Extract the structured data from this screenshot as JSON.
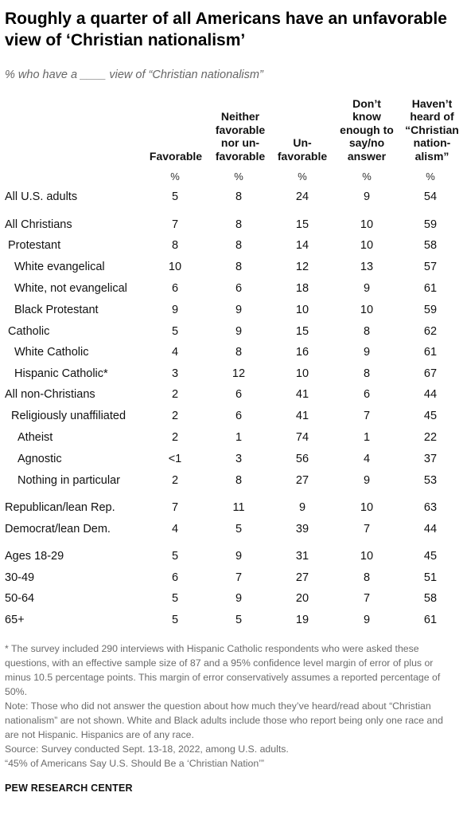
{
  "title": "Roughly a quarter of all Americans have an unfavorable view of ‘Christian nationalism’",
  "subtitle": "% who have a ____ view of “Christian nationalism”",
  "percent_symbol": "%",
  "columns": [
    "Favorable",
    "Neither\nfavorable\nnor un-\nfavorable",
    "Un-\nfavorable",
    "Don’t\nknow\nenough to\nsay/no\nanswer",
    "Haven’t\nheard of\n“Christian\nnation-\nalism”"
  ],
  "chart_data": {
    "type": "table",
    "title": "Roughly a quarter of all Americans have an unfavorable view of ‘Christian nationalism’",
    "columns": [
      "Favorable",
      "Neither favorable nor un-favorable",
      "Un-favorable",
      "Don’t know enough to say/no answer",
      "Haven’t heard of “Christian nation-alism”"
    ],
    "rows": [
      {
        "label": "All U.S. adults",
        "values": [
          "5",
          "8",
          "24",
          "9",
          "54"
        ]
      },
      {
        "label": "All Christians",
        "values": [
          "7",
          "8",
          "15",
          "10",
          "59"
        ]
      },
      {
        "label": "Protestant",
        "values": [
          "8",
          "8",
          "14",
          "10",
          "58"
        ]
      },
      {
        "label": "White evangelical",
        "values": [
          "10",
          "8",
          "12",
          "13",
          "57"
        ]
      },
      {
        "label": "White, not evangelical",
        "values": [
          "6",
          "6",
          "18",
          "9",
          "61"
        ]
      },
      {
        "label": "Black Protestant",
        "values": [
          "9",
          "9",
          "10",
          "10",
          "59"
        ]
      },
      {
        "label": "Catholic",
        "values": [
          "5",
          "9",
          "15",
          "8",
          "62"
        ]
      },
      {
        "label": "White Catholic",
        "values": [
          "4",
          "8",
          "16",
          "9",
          "61"
        ]
      },
      {
        "label": "Hispanic Catholic*",
        "values": [
          "3",
          "12",
          "10",
          "8",
          "67"
        ]
      },
      {
        "label": "All non-Christians",
        "values": [
          "2",
          "6",
          "41",
          "6",
          "44"
        ]
      },
      {
        "label": "Religiously unaffiliated",
        "values": [
          "2",
          "6",
          "41",
          "7",
          "45"
        ]
      },
      {
        "label": "Atheist",
        "values": [
          "2",
          "1",
          "74",
          "1",
          "22"
        ]
      },
      {
        "label": "Agnostic",
        "values": [
          "<1",
          "3",
          "56",
          "4",
          "37"
        ]
      },
      {
        "label": "Nothing in particular",
        "values": [
          "2",
          "8",
          "27",
          "9",
          "53"
        ]
      },
      {
        "label": "Republican/lean Rep.",
        "values": [
          "7",
          "11",
          "9",
          "10",
          "63"
        ]
      },
      {
        "label": "Democrat/lean Dem.",
        "values": [
          "4",
          "5",
          "39",
          "7",
          "44"
        ]
      },
      {
        "label": "Ages 18-29",
        "values": [
          "5",
          "9",
          "31",
          "10",
          "45"
        ]
      },
      {
        "label": "30-49",
        "values": [
          "6",
          "7",
          "27",
          "8",
          "51"
        ]
      },
      {
        "label": "50-64",
        "values": [
          "5",
          "9",
          "20",
          "7",
          "58"
        ]
      },
      {
        "label": "65+",
        "values": [
          "5",
          "5",
          "19",
          "9",
          "61"
        ]
      }
    ]
  },
  "footnotes": [
    "* The survey included 290 interviews with Hispanic Catholic respondents who were asked these questions, with an effective sample size of 87 and a 95% confidence level margin of error of plus or minus 10.5 percentage points. This margin of error conservatively assumes a reported percentage of 50%.",
    "Note: Those who did not answer the question about how much they’ve heard/read about “Christian nationalism” are not shown. White and Black adults include those who report being only one race and are not Hispanic. Hispanics are of any race.",
    "Source: Survey conducted Sept. 13-18, 2022, among U.S. adults.",
    "“45% of Americans Say U.S. Should Be a ‘Christian Nation’”"
  ],
  "brand": "PEW RESEARCH CENTER"
}
